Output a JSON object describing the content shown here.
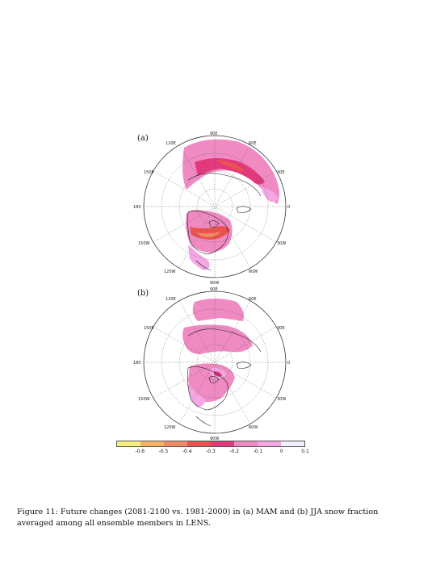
{
  "panels": [
    {
      "label": "(a)",
      "lat_ticks": [
        "90E",
        "120E",
        "150E",
        "180",
        "150W",
        "120W",
        "90W",
        "60W",
        "30W",
        "0",
        "30E",
        "60E"
      ]
    },
    {
      "label": "(b)",
      "lat_ticks": [
        "90E",
        "120E",
        "150E",
        "180",
        "150W",
        "120W",
        "90W",
        "60W",
        "30W",
        "0",
        "30E",
        "60E"
      ]
    }
  ],
  "colorbar": {
    "colors": [
      "#f6f07a",
      "#f4b267",
      "#ef8a63",
      "#e9534f",
      "#e2387c",
      "#f08ac2",
      "#f4a7e4",
      "#f3eefb"
    ],
    "tick_labels": [
      "-0.6",
      "-0.5",
      "-0.4",
      "-0.3",
      "-0.2",
      "-0.1",
      "0",
      "0.1"
    ]
  },
  "caption": {
    "line1": "Figure 11: Future changes (2081-2100 vs. 1981-2000) in (a) MAM and (b) JJA snow fraction",
    "line2": "averaged among all ensemble members in LENS."
  }
}
